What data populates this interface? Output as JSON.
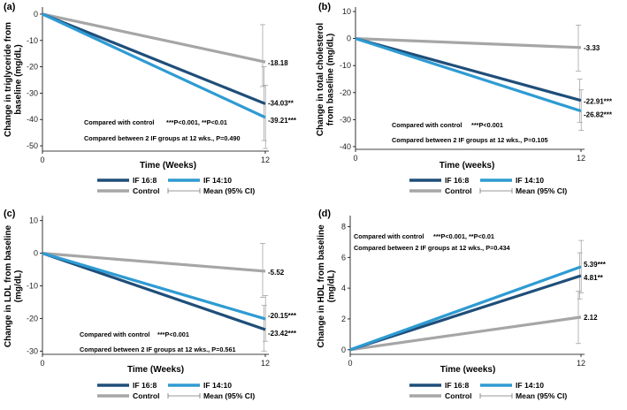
{
  "colors": {
    "if168": "#1f4e79",
    "if1410": "#2e9bd3",
    "control": "#a6a6a6",
    "ci": "#999999"
  },
  "legend": {
    "if168": "IF 16:8",
    "if1410": "IF 14:10",
    "control": "Control",
    "ci": "Mean (95% CI)"
  },
  "chart_data": [
    {
      "type": "line",
      "panel": "(a)",
      "ylabel_lines": [
        "Change in triglyceride from",
        "baseline (mg/dL)"
      ],
      "xlabel": "Time (Weeks)",
      "x": [
        0,
        12
      ],
      "xticks": [
        "0",
        "12"
      ],
      "ylim": [
        -52,
        2
      ],
      "yticks": [
        0,
        -10,
        -20,
        -30,
        -40,
        -50
      ],
      "ytick_labels": [
        "0",
        "-10",
        "-20",
        "-30",
        "-40",
        "-50"
      ],
      "series": [
        {
          "key": "control",
          "name": "Control",
          "values": [
            0,
            -18.18
          ],
          "label": "-18.18",
          "ci": [
            -27.5,
            -4
          ]
        },
        {
          "key": "if168",
          "name": "IF 16:8",
          "values": [
            0,
            -34.03
          ],
          "label": "-34.03**",
          "ci": [
            -48,
            -20
          ]
        },
        {
          "key": "if1410",
          "name": "IF 14:10",
          "values": [
            0,
            -39.21
          ],
          "label": "-39.21***",
          "ci": [
            -51,
            -27
          ]
        }
      ],
      "annotations": [
        "Compared with control",
        "***P<0.001, **P<0.01",
        "Compared between 2 IF groups at 12 wks., P=0.490"
      ]
    },
    {
      "type": "line",
      "panel": "(b)",
      "ylabel_lines": [
        "Change in total cholesterol",
        "from baseline (mg/dL)"
      ],
      "xlabel": "Time (weeks)",
      "x": [
        0,
        12
      ],
      "xticks": [
        "0",
        "12"
      ],
      "ylim": [
        -41,
        11
      ],
      "yticks": [
        10,
        0,
        -10,
        -20,
        -30,
        -40
      ],
      "ytick_labels": [
        "10",
        "0",
        "-10",
        "-20",
        "-30",
        "-40"
      ],
      "series": [
        {
          "key": "control",
          "name": "Control",
          "values": [
            0,
            -3.33
          ],
          "label": "-3.33",
          "ci": [
            -12,
            5
          ]
        },
        {
          "key": "if168",
          "name": "IF 16:8",
          "values": [
            0,
            -22.91
          ],
          "label": "-22.91***",
          "ci": [
            -31,
            -15
          ]
        },
        {
          "key": "if1410",
          "name": "IF 14:10",
          "values": [
            0,
            -26.82
          ],
          "label": "-26.82***",
          "ci": [
            -34,
            -19
          ]
        }
      ],
      "annotations": [
        "Compared with control",
        "***P<0.001",
        "Compared between 2 IF groups at 12 wks., P=0.105"
      ]
    },
    {
      "type": "line",
      "panel": "(c)",
      "ylabel_lines": [
        "Change in LDL from baseline",
        "(mg/dL)"
      ],
      "xlabel": "Time (Weeks)",
      "x": [
        0,
        12
      ],
      "xticks": [
        "0",
        "12"
      ],
      "ylim": [
        -31,
        11
      ],
      "yticks": [
        10,
        0,
        -10,
        -20,
        -30
      ],
      "ytick_labels": [
        "10",
        "0",
        "-10",
        "-20",
        "-30"
      ],
      "series": [
        {
          "key": "control",
          "name": "Control",
          "values": [
            0,
            -5.52
          ],
          "label": "-5.52",
          "ci": [
            -13.5,
            3
          ]
        },
        {
          "key": "if168",
          "name": "IF 16:8",
          "values": [
            0,
            -23.42
          ],
          "label": "-23.42***",
          "ci": [
            -30,
            -16
          ]
        },
        {
          "key": "if1410",
          "name": "IF 14:10",
          "values": [
            0,
            -20.15
          ],
          "label": "-20.15***",
          "ci": [
            -27,
            -13
          ]
        }
      ],
      "annotations": [
        "Compared with control",
        "***P<0.001",
        "Compared between 2 IF groups at 12 wks., P=0.561"
      ]
    },
    {
      "type": "line",
      "panel": "(d)",
      "ylabel_lines": [
        "Change in HDL from baseline",
        "(mg/dL)"
      ],
      "xlabel": "Time (weeks)",
      "x": [
        0,
        12
      ],
      "xticks": [
        "0",
        "12"
      ],
      "ylim": [
        -0.3,
        8.6
      ],
      "yticks": [
        0,
        2,
        4,
        6,
        8
      ],
      "ytick_labels": [
        "0",
        "2",
        "4",
        "6",
        "8"
      ],
      "series": [
        {
          "key": "control",
          "name": "Control",
          "values": [
            0,
            2.12
          ],
          "label": "2.12",
          "ci": [
            0.4,
            3.8
          ]
        },
        {
          "key": "if168",
          "name": "IF 16:8",
          "values": [
            0,
            4.81
          ],
          "label": "4.81**",
          "ci": [
            3.3,
            6.3
          ]
        },
        {
          "key": "if1410",
          "name": "IF 14:10",
          "values": [
            0,
            5.39
          ],
          "label": "5.39***",
          "ci": [
            3.7,
            7.1
          ]
        }
      ],
      "annotations": [
        "Compared with control",
        "***P<0.001, **P<0.01",
        "Compared between 2 IF groups at 12 wks., P=0.434"
      ]
    }
  ]
}
